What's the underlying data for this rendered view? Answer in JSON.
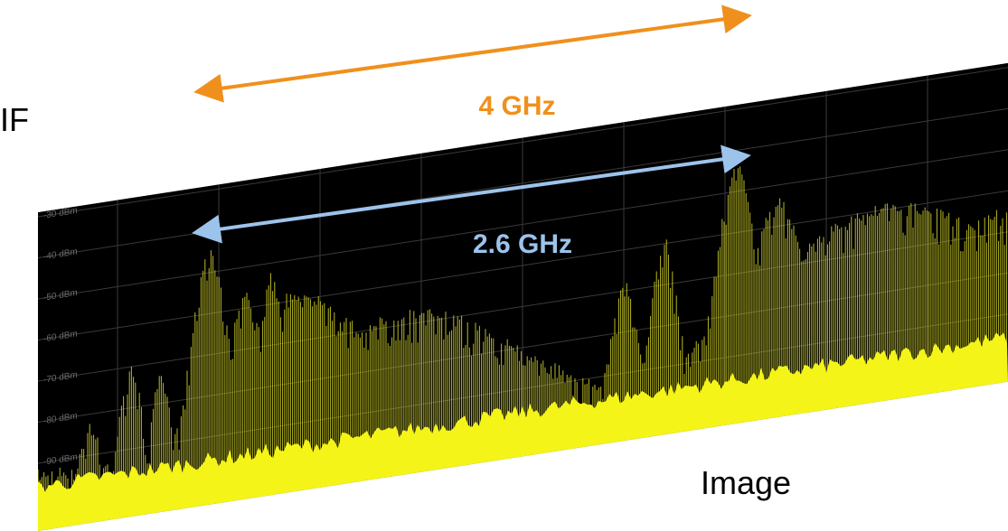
{
  "annotations": {
    "if_label": "IF",
    "outer_span": "4 GHz",
    "inner_span": "2.6 GHz",
    "image_label": "Image"
  },
  "spectrum": {
    "level_labels": [
      "-30 dBm",
      "-40 dBm",
      "-50 dBm",
      "-60 dBm",
      "-70 dBm",
      "-80 dBm",
      "-90 dBm"
    ]
  }
}
